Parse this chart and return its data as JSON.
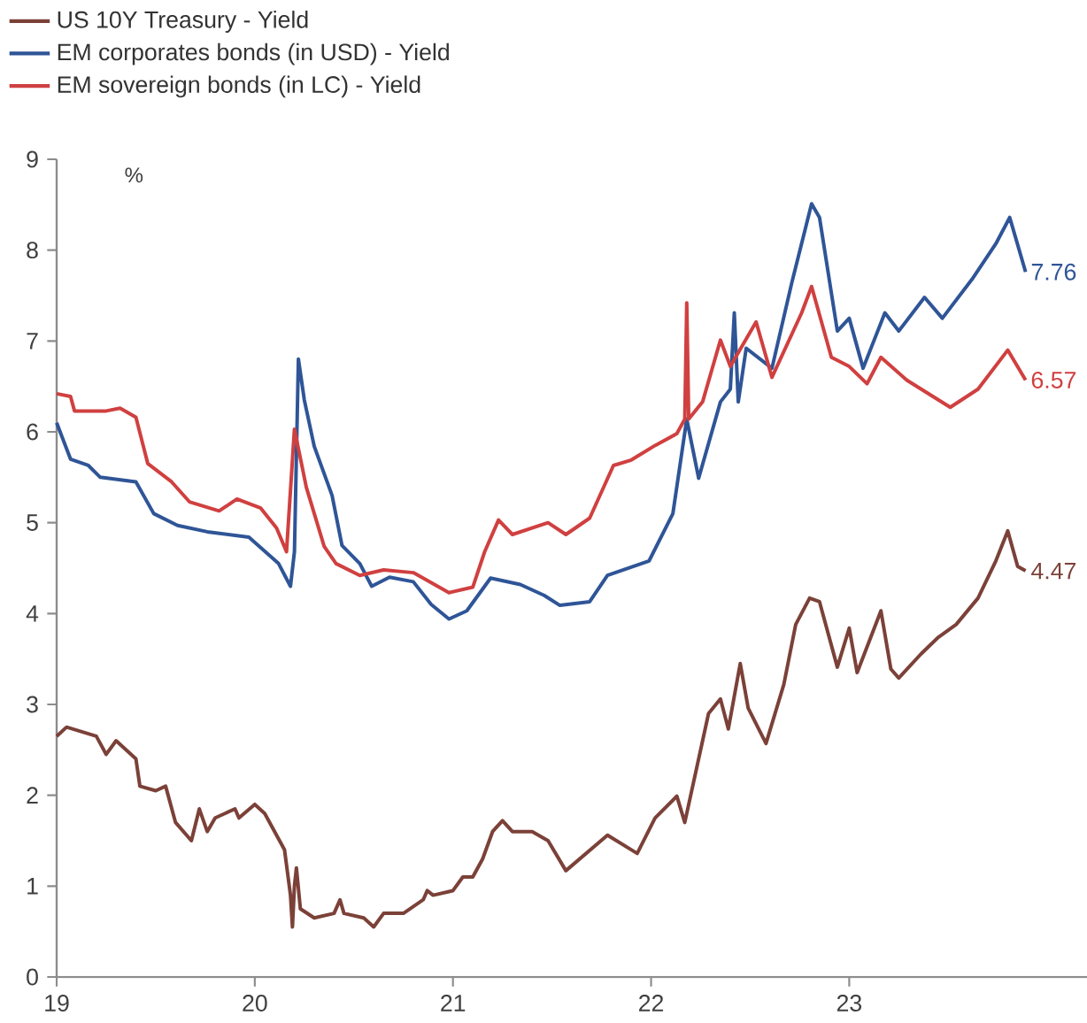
{
  "chart_data": {
    "type": "line",
    "ylabel": "%",
    "xlim": [
      2019,
      2024.2
    ],
    "xticks": [
      {
        "value": 2019,
        "label": "19"
      },
      {
        "value": 2020,
        "label": "20"
      },
      {
        "value": 2021,
        "label": "21"
      },
      {
        "value": 2022,
        "label": "22"
      },
      {
        "value": 2023,
        "label": "23"
      }
    ],
    "ylim": [
      0,
      9
    ],
    "yticks": [
      0,
      1,
      2,
      3,
      4,
      5,
      6,
      7,
      8,
      9
    ],
    "legend": "top left",
    "series": [
      {
        "name": "US 10Y Treasury - Yield",
        "color": "#7b4138",
        "x": [
          2019.0,
          2019.05,
          2019.2,
          2019.25,
          2019.3,
          2019.4,
          2019.42,
          2019.5,
          2019.55,
          2019.6,
          2019.68,
          2019.72,
          2019.76,
          2019.8,
          2019.9,
          2019.92,
          2020.0,
          2020.05,
          2020.1,
          2020.15,
          2020.18,
          2020.19,
          2020.2,
          2020.21,
          2020.23,
          2020.3,
          2020.4,
          2020.43,
          2020.45,
          2020.55,
          2020.6,
          2020.65,
          2020.75,
          2020.85,
          2020.87,
          2020.9,
          2021.0,
          2021.05,
          2021.1,
          2021.15,
          2021.2,
          2021.25,
          2021.3,
          2021.4,
          2021.48,
          2021.57,
          2021.78,
          2021.93,
          2022.02,
          2022.13,
          2022.17,
          2022.29,
          2022.35,
          2022.39,
          2022.45,
          2022.49,
          2022.58,
          2022.67,
          2022.73,
          2022.8,
          2022.85,
          2022.94,
          2023.0,
          2023.04,
          2023.16,
          2023.21,
          2023.25,
          2023.36,
          2023.45,
          2023.54,
          2023.65,
          2023.74,
          2023.8,
          2023.85,
          2023.89
        ],
        "values": [
          2.65,
          2.75,
          2.65,
          2.45,
          2.6,
          2.4,
          2.1,
          2.05,
          2.1,
          1.7,
          1.5,
          1.85,
          1.6,
          1.75,
          1.85,
          1.75,
          1.9,
          1.8,
          1.6,
          1.4,
          0.9,
          0.55,
          1.0,
          1.2,
          0.75,
          0.65,
          0.7,
          0.85,
          0.7,
          0.65,
          0.55,
          0.7,
          0.7,
          0.85,
          0.95,
          0.9,
          0.95,
          1.1,
          1.1,
          1.3,
          1.6,
          1.72,
          1.6,
          1.6,
          1.5,
          1.17,
          1.56,
          1.36,
          1.75,
          1.99,
          1.7,
          2.9,
          3.06,
          2.73,
          3.45,
          2.96,
          2.57,
          3.22,
          3.88,
          4.17,
          4.13,
          3.41,
          3.84,
          3.35,
          4.03,
          3.39,
          3.29,
          3.55,
          3.74,
          3.88,
          4.17,
          4.58,
          4.91,
          4.52,
          4.47
        ],
        "value_labels": [
          null,
          null,
          null,
          null,
          null,
          null,
          null,
          null,
          null,
          null,
          null,
          null,
          null,
          null,
          null,
          null,
          null,
          null,
          null,
          null,
          null,
          null,
          null,
          null,
          null,
          null,
          null,
          null,
          null,
          null,
          null,
          null,
          null,
          null,
          null,
          null,
          null,
          null,
          null,
          null,
          null,
          null,
          null,
          null,
          null,
          null,
          null,
          null,
          null,
          null,
          null,
          null,
          null,
          null,
          null,
          null,
          null,
          null,
          null,
          null,
          null,
          null,
          null,
          null,
          null,
          null,
          null,
          null,
          null,
          null,
          null,
          null,
          null,
          null,
          "4.47"
        ]
      },
      {
        "name": "EM corporates bonds (in USD) - Yield",
        "color": "#2f5597",
        "x": [
          2019.0,
          2019.07,
          2019.16,
          2019.22,
          2019.4,
          2019.49,
          2019.61,
          2019.76,
          2019.97,
          2020.12,
          2020.18,
          2020.2,
          2020.22,
          2020.25,
          2020.3,
          2020.39,
          2020.44,
          2020.53,
          2020.59,
          2020.68,
          2020.8,
          2020.89,
          2020.98,
          2021.07,
          2021.19,
          2021.34,
          2021.46,
          2021.54,
          2021.69,
          2021.78,
          2021.99,
          2022.11,
          2022.18,
          2022.24,
          2022.35,
          2022.4,
          2022.42,
          2022.44,
          2022.48,
          2022.61,
          2022.71,
          2022.81,
          2022.85,
          2022.94,
          2023.0,
          2023.07,
          2023.18,
          2023.25,
          2023.38,
          2023.47,
          2023.62,
          2023.74,
          2023.81,
          2023.89
        ],
        "values": [
          6.1,
          5.7,
          5.63,
          5.5,
          5.45,
          5.1,
          4.97,
          4.9,
          4.84,
          4.55,
          4.3,
          4.68,
          6.8,
          6.35,
          5.84,
          5.3,
          4.75,
          4.55,
          4.3,
          4.4,
          4.35,
          4.1,
          3.94,
          4.03,
          4.39,
          4.32,
          4.2,
          4.09,
          4.13,
          4.42,
          4.58,
          5.1,
          6.14,
          5.49,
          6.33,
          6.47,
          7.31,
          6.33,
          6.92,
          6.7,
          7.64,
          8.51,
          8.36,
          7.11,
          7.25,
          6.7,
          7.31,
          7.11,
          7.48,
          7.25,
          7.68,
          8.07,
          8.36,
          7.76
        ],
        "value_labels": [
          null,
          null,
          null,
          null,
          null,
          null,
          null,
          null,
          null,
          null,
          null,
          null,
          null,
          null,
          null,
          null,
          null,
          null,
          null,
          null,
          null,
          null,
          null,
          null,
          null,
          null,
          null,
          null,
          null,
          null,
          null,
          null,
          null,
          null,
          null,
          null,
          null,
          null,
          null,
          null,
          null,
          null,
          null,
          null,
          null,
          null,
          null,
          null,
          null,
          null,
          null,
          null,
          null,
          "7.76"
        ]
      },
      {
        "name": "EM sovereign bonds (in LC) - Yield",
        "color": "#d04040",
        "x": [
          2019.0,
          2019.07,
          2019.09,
          2019.25,
          2019.32,
          2019.4,
          2019.46,
          2019.58,
          2019.67,
          2019.82,
          2019.91,
          2020.03,
          2020.11,
          2020.16,
          2020.2,
          2020.26,
          2020.35,
          2020.41,
          2020.53,
          2020.65,
          2020.8,
          2020.98,
          2021.1,
          2021.16,
          2021.23,
          2021.3,
          2021.48,
          2021.57,
          2021.69,
          2021.81,
          2021.9,
          2022.02,
          2022.13,
          2022.17,
          2022.18,
          2022.19,
          2022.26,
          2022.35,
          2022.4,
          2022.53,
          2022.61,
          2022.76,
          2022.81,
          2022.91,
          2023.0,
          2023.09,
          2023.16,
          2023.29,
          2023.51,
          2023.65,
          2023.8,
          2023.89
        ],
        "values": [
          6.42,
          6.39,
          6.23,
          6.23,
          6.26,
          6.16,
          5.65,
          5.45,
          5.23,
          5.13,
          5.26,
          5.16,
          4.94,
          4.68,
          6.03,
          5.39,
          4.74,
          4.55,
          4.42,
          4.48,
          4.45,
          4.23,
          4.29,
          4.68,
          5.03,
          4.87,
          5.0,
          4.87,
          5.05,
          5.63,
          5.69,
          5.85,
          5.98,
          6.14,
          7.42,
          6.14,
          6.33,
          7.01,
          6.72,
          7.21,
          6.6,
          7.31,
          7.6,
          6.82,
          6.72,
          6.53,
          6.82,
          6.57,
          6.27,
          6.47,
          6.9,
          6.57
        ],
        "value_labels": [
          null,
          null,
          null,
          null,
          null,
          null,
          null,
          null,
          null,
          null,
          null,
          null,
          null,
          null,
          null,
          null,
          null,
          null,
          null,
          null,
          null,
          null,
          null,
          null,
          null,
          null,
          null,
          null,
          null,
          null,
          null,
          null,
          null,
          null,
          null,
          null,
          null,
          null,
          null,
          null,
          null,
          null,
          null,
          null,
          null,
          null,
          null,
          null,
          null,
          null,
          null,
          "6.57"
        ]
      }
    ]
  }
}
